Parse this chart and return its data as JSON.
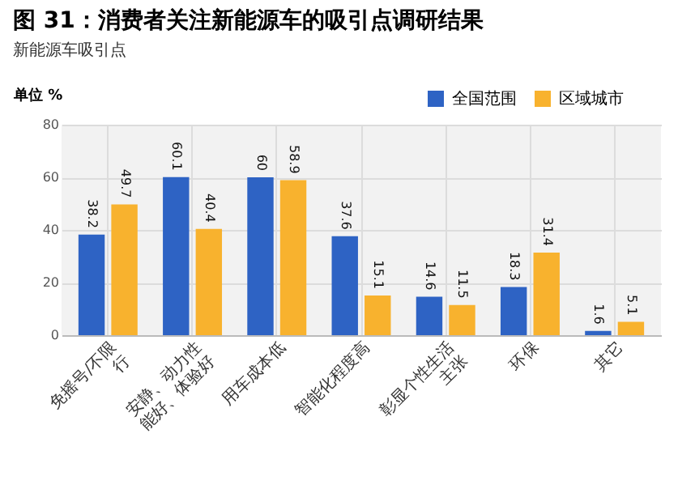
{
  "chart_data": {
    "type": "bar",
    "title": "图 31：消费者关注新能源车的吸引点调研结果",
    "subtitle": "新能源车吸引点",
    "ylabel": "单位 %",
    "categories": [
      "免摇号/不限行",
      "安静、动力性能好、体验好",
      "用车成本低",
      "智能化程度高",
      "彰显个性生活主张",
      "环保",
      "其它"
    ],
    "series": [
      {
        "name": "全国范围",
        "color": "#2e63c4",
        "values": [
          38.2,
          60.1,
          60.0,
          37.6,
          14.6,
          18.3,
          1.6
        ]
      },
      {
        "name": "区域城市",
        "color": "#f8b22e",
        "values": [
          49.7,
          40.4,
          58.9,
          15.1,
          11.5,
          31.4,
          5.1
        ]
      }
    ],
    "ylim": [
      0,
      80
    ],
    "yticks": [
      0,
      20,
      40,
      60,
      80
    ],
    "grid": true,
    "legend": "top right",
    "data_labels": true
  }
}
